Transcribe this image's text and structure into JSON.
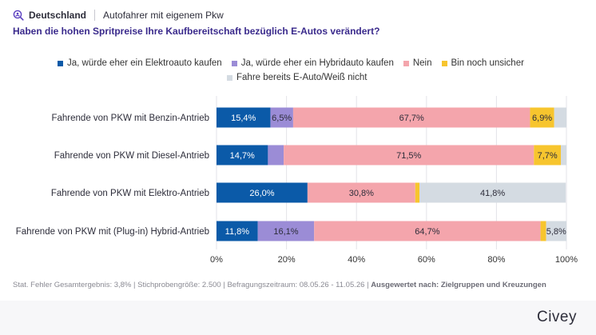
{
  "header": {
    "country": "Deutschland",
    "panel": "Autofahrer mit eigenem Pkw"
  },
  "question": "Haben die hohen Spritpreise Ihre Kaufbereitschaft bezüglich E-Autos verändert?",
  "footer": {
    "stats": "Stat. Fehler Gesamtergebnis: 3,8% | Stichprobengröße: 2.500 | Befragungszeitraum: 08.05.26 - 11.05.26 | ",
    "evaluated": "Ausgewertet nach: Zielgruppen und Kreuzungen"
  },
  "brand": "Civey",
  "chart_data": {
    "type": "bar",
    "orientation": "horizontal",
    "stacked": true,
    "categories": [
      "Fahrende von PKW mit Benzin-Antrieb",
      "Fahrende von PKW mit Diesel-Antrieb",
      "Fahrende von PKW mit Elektro-Antrieb",
      "Fahrende von PKW mit (Plug-in) Hybrid-Antrieb"
    ],
    "series": [
      {
        "name": "Ja, würde eher ein Elektroauto kaufen",
        "color": "#0b5aa8",
        "values": [
          15.4,
          14.7,
          26.0,
          11.8
        ],
        "labels": [
          "15,4%",
          "14,7%",
          "26,0%",
          "11,8%"
        ]
      },
      {
        "name": "Ja, würde eher ein Hybridauto kaufen",
        "color": "#9b8cd6",
        "values": [
          6.5,
          4.5,
          0,
          16.1
        ],
        "labels": [
          "6,5%",
          "",
          "",
          "16,1%"
        ]
      },
      {
        "name": "Nein",
        "color": "#f4a5ac",
        "values": [
          67.7,
          71.5,
          30.8,
          64.7
        ],
        "labels": [
          "67,7%",
          "71,5%",
          "30,8%",
          "64,7%"
        ]
      },
      {
        "name": "Bin noch unsicher",
        "color": "#f7c52e",
        "values": [
          6.9,
          7.7,
          1.2,
          1.6
        ],
        "labels": [
          "6,9%",
          "7,7%",
          "",
          ""
        ]
      },
      {
        "name": "Fahre bereits E-Auto/Weiß nicht",
        "color": "#d4dbe2",
        "values": [
          3.5,
          1.6,
          41.8,
          5.8
        ],
        "labels": [
          "",
          "",
          "41,8%",
          "5,8%"
        ]
      }
    ],
    "xlim": [
      0,
      100
    ],
    "xticks": [
      "0%",
      "20%",
      "40%",
      "60%",
      "80%",
      "100%"
    ],
    "grid": true,
    "legend_position": "top"
  }
}
